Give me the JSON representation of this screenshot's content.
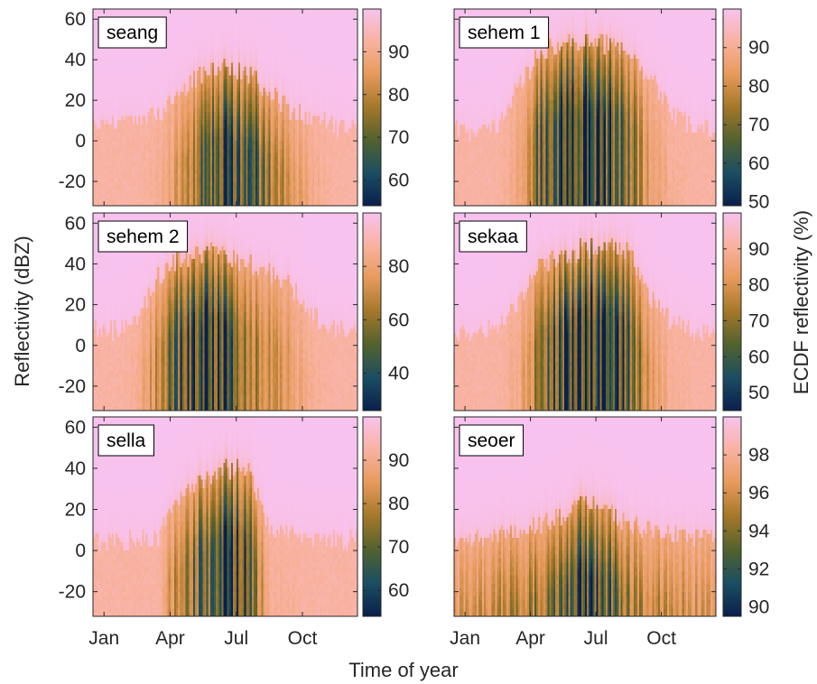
{
  "figure": {
    "xlabel": "Time of year",
    "ylabel": "Reflectivity (dBZ)",
    "colorbar_label": "ECDF reflectivity (%)"
  },
  "colormap": [
    "#0a1f4d",
    "#1a4e63",
    "#52622e",
    "#a4772a",
    "#e69a5a",
    "#f9b2a0",
    "#f8c2ee"
  ],
  "chart_data": [
    {
      "type": "heatmap",
      "label": "seang",
      "xticks": [
        "Jan",
        "Apr",
        "Jul",
        "Oct"
      ],
      "yticks": [
        -20,
        0,
        20,
        40,
        60
      ],
      "ylim": [
        -32,
        65
      ],
      "clim": [
        54,
        100
      ],
      "cticks": [
        60,
        70,
        80,
        90
      ],
      "season": [
        0,
        0,
        0,
        0.05,
        0.3,
        0.7,
        1.0,
        0.85,
        0.55,
        0.3,
        0.08,
        0,
        0
      ],
      "top": [
        8,
        8,
        10,
        15,
        26,
        34,
        38,
        33,
        25,
        15,
        10,
        8,
        8
      ]
    },
    {
      "type": "heatmap",
      "label": "sehem 1",
      "xticks": [
        "Jan",
        "Apr",
        "Jul",
        "Oct"
      ],
      "yticks": [
        -20,
        0,
        20,
        40,
        60
      ],
      "ylim": [
        -32,
        65
      ],
      "clim": [
        49,
        100
      ],
      "cticks": [
        50,
        60,
        70,
        80,
        90
      ],
      "season": [
        0,
        0,
        0,
        0.15,
        0.75,
        1.0,
        1.0,
        0.9,
        0.6,
        0.2,
        0.05,
        0,
        0
      ],
      "top": [
        6,
        6,
        8,
        28,
        45,
        48,
        50,
        48,
        45,
        32,
        14,
        6,
        6
      ]
    },
    {
      "type": "heatmap",
      "label": "sehem 2",
      "xticks": [
        "Jan",
        "Apr",
        "Jul",
        "Oct"
      ],
      "yticks": [
        -20,
        0,
        20,
        40,
        60
      ],
      "ylim": [
        -32,
        65
      ],
      "clim": [
        26,
        100
      ],
      "cticks": [
        40,
        60,
        80
      ],
      "season": [
        0,
        0,
        0.05,
        0.4,
        0.85,
        1.0,
        0.85,
        0.6,
        0.35,
        0.2,
        0.05,
        0,
        0
      ],
      "top": [
        8,
        8,
        12,
        35,
        44,
        46,
        46,
        40,
        36,
        30,
        15,
        8,
        8
      ]
    },
    {
      "type": "heatmap",
      "label": "sekaa",
      "xticks": [
        "Jan",
        "Apr",
        "Jul",
        "Oct"
      ],
      "yticks": [
        -20,
        0,
        20,
        40,
        60
      ],
      "ylim": [
        -32,
        65
      ],
      "clim": [
        45,
        100
      ],
      "cticks": [
        50,
        60,
        70,
        80,
        90
      ],
      "season": [
        0,
        0,
        0,
        0.1,
        0.6,
        0.9,
        1.0,
        1.0,
        0.8,
        0.25,
        0.05,
        0,
        0
      ],
      "top": [
        6,
        6,
        8,
        22,
        40,
        43,
        48,
        50,
        46,
        24,
        12,
        6,
        6
      ]
    },
    {
      "type": "heatmap",
      "label": "sella",
      "xticks": [
        "Jan",
        "Apr",
        "Jul",
        "Oct"
      ],
      "yticks": [
        -20,
        0,
        20,
        40,
        60
      ],
      "ylim": [
        -32,
        65
      ],
      "clim": [
        54,
        100
      ],
      "cticks": [
        60,
        70,
        80,
        90
      ],
      "season": [
        0,
        0,
        0,
        0,
        0.55,
        0.7,
        0.95,
        0.85,
        0.05,
        0.03,
        0,
        0,
        0
      ],
      "top": [
        5,
        5,
        5,
        8,
        28,
        34,
        40,
        40,
        12,
        8,
        5,
        5,
        5
      ]
    },
    {
      "type": "heatmap",
      "label": "seoer",
      "xticks": [
        "Jan",
        "Apr",
        "Jul",
        "Oct"
      ],
      "yticks": [
        -20,
        0,
        20,
        40,
        60
      ],
      "ylim": [
        -32,
        65
      ],
      "clim": [
        89.5,
        100
      ],
      "cticks": [
        90,
        92,
        94,
        96,
        98
      ],
      "season": [
        0.25,
        0.3,
        0.4,
        0.5,
        0.55,
        0.7,
        0.9,
        0.8,
        0.5,
        0.4,
        0.35,
        0.3,
        0.25
      ],
      "top": [
        6,
        6,
        8,
        10,
        14,
        18,
        24,
        20,
        12,
        10,
        8,
        6,
        6
      ]
    }
  ]
}
